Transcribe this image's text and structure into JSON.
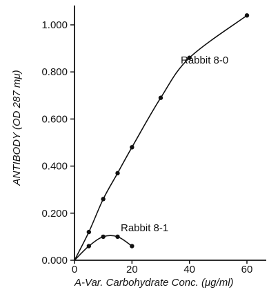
{
  "chart_data": {
    "type": "line",
    "title": "",
    "xlabel": "A-Var. Carbohydrate Conc. (μg/ml)",
    "ylabel": "ANTIBODY (OD 287 mμ)",
    "xlim": [
      0,
      75
    ],
    "ylim": [
      0,
      1.1
    ],
    "x_ticks": [
      0,
      20,
      40,
      60
    ],
    "x_tick_labels": [
      "0",
      "20",
      "40",
      "60"
    ],
    "y_ticks": [
      0,
      0.2,
      0.4,
      0.6,
      0.8,
      1.0
    ],
    "y_tick_labels": [
      "0.000",
      "0.200",
      "0.400",
      "0.600",
      "0.800",
      "1.000"
    ],
    "grid": false,
    "series": [
      {
        "name": "Rabbit 8-0",
        "x": [
          0,
          5,
          10,
          15,
          20,
          30,
          40,
          60
        ],
        "y": [
          0,
          0.12,
          0.26,
          0.37,
          0.48,
          0.69,
          0.86,
          1.04
        ]
      },
      {
        "name": "Rabbit 8-1",
        "x": [
          0,
          5,
          10,
          15,
          20
        ],
        "y": [
          0,
          0.06,
          0.1,
          0.1,
          0.06
        ]
      }
    ]
  }
}
